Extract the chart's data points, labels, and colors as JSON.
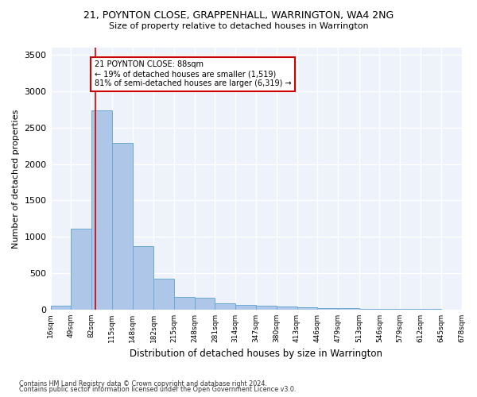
{
  "title": "21, POYNTON CLOSE, GRAPPENHALL, WARRINGTON, WA4 2NG",
  "subtitle": "Size of property relative to detached houses in Warrington",
  "xlabel": "Distribution of detached houses by size in Warrington",
  "ylabel": "Number of detached properties",
  "bar_color": "#aec6e8",
  "bar_edge_color": "#6aaad4",
  "property_line_x": 88,
  "property_line_color": "#cc0000",
  "annotation_text": "21 POYNTON CLOSE: 88sqm\n← 19% of detached houses are smaller (1,519)\n81% of semi-detached houses are larger (6,319) →",
  "annotation_box_color": "#cc0000",
  "annotation_text_color": "#000000",
  "footnote1": "Contains HM Land Registry data © Crown copyright and database right 2024.",
  "footnote2": "Contains public sector information licensed under the Open Government Licence v3.0.",
  "background_color": "#eef2fa",
  "grid_color": "#ffffff",
  "bin_edges": [
    16,
    49,
    82,
    115,
    148,
    182,
    215,
    248,
    281,
    314,
    347,
    380,
    413,
    446,
    479,
    513,
    546,
    579,
    612,
    645,
    678
  ],
  "bar_heights": [
    55,
    1110,
    2740,
    2290,
    875,
    425,
    170,
    165,
    90,
    60,
    50,
    40,
    30,
    20,
    20,
    15,
    10,
    8,
    5,
    4
  ],
  "ylim": [
    0,
    3600
  ],
  "yticks": [
    0,
    500,
    1000,
    1500,
    2000,
    2500,
    3000,
    3500
  ]
}
